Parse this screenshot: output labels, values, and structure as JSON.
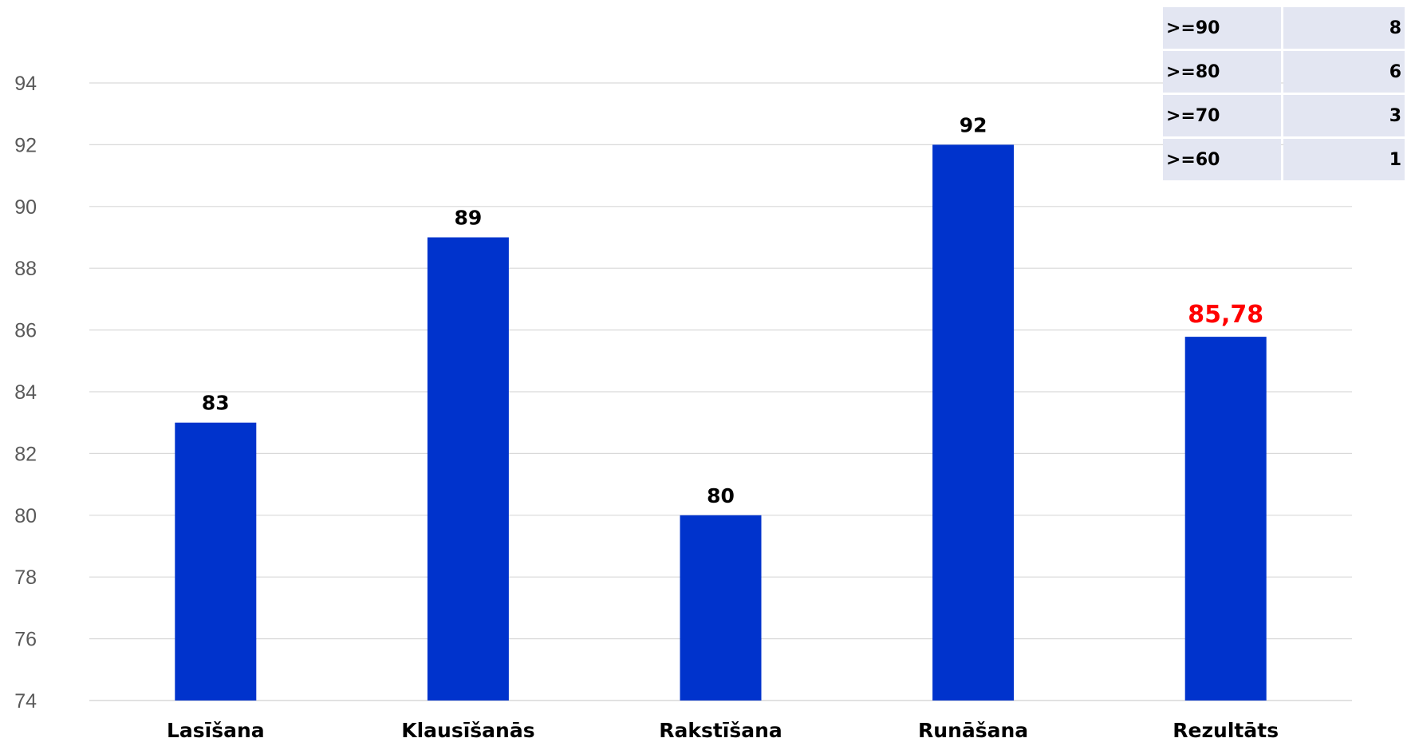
{
  "chart_data": {
    "type": "bar",
    "categories": [
      "Lasīšana",
      "Klausīšanās",
      "Rakstīšana",
      "Runāšana",
      "Rezultāts"
    ],
    "values": [
      83,
      89,
      80,
      92,
      85.78
    ],
    "data_labels": [
      "83",
      "89",
      "80",
      "92",
      "85,78"
    ],
    "highlight_index": 4,
    "ylim": [
      74,
      94
    ],
    "y_ticks": [
      74,
      76,
      78,
      80,
      82,
      84,
      86,
      88,
      90,
      92,
      94
    ],
    "grid": true,
    "colors": {
      "bar": "#0033cc",
      "grid": "#d9d9d9",
      "label": "#000000",
      "highlight_label": "#ff0000"
    }
  },
  "table": {
    "rows": [
      {
        "threshold": ">=90",
        "count": "8"
      },
      {
        "threshold": ">=80",
        "count": "6"
      },
      {
        "threshold": ">=70",
        "count": "3"
      },
      {
        "threshold": ">=60",
        "count": "1"
      }
    ]
  }
}
